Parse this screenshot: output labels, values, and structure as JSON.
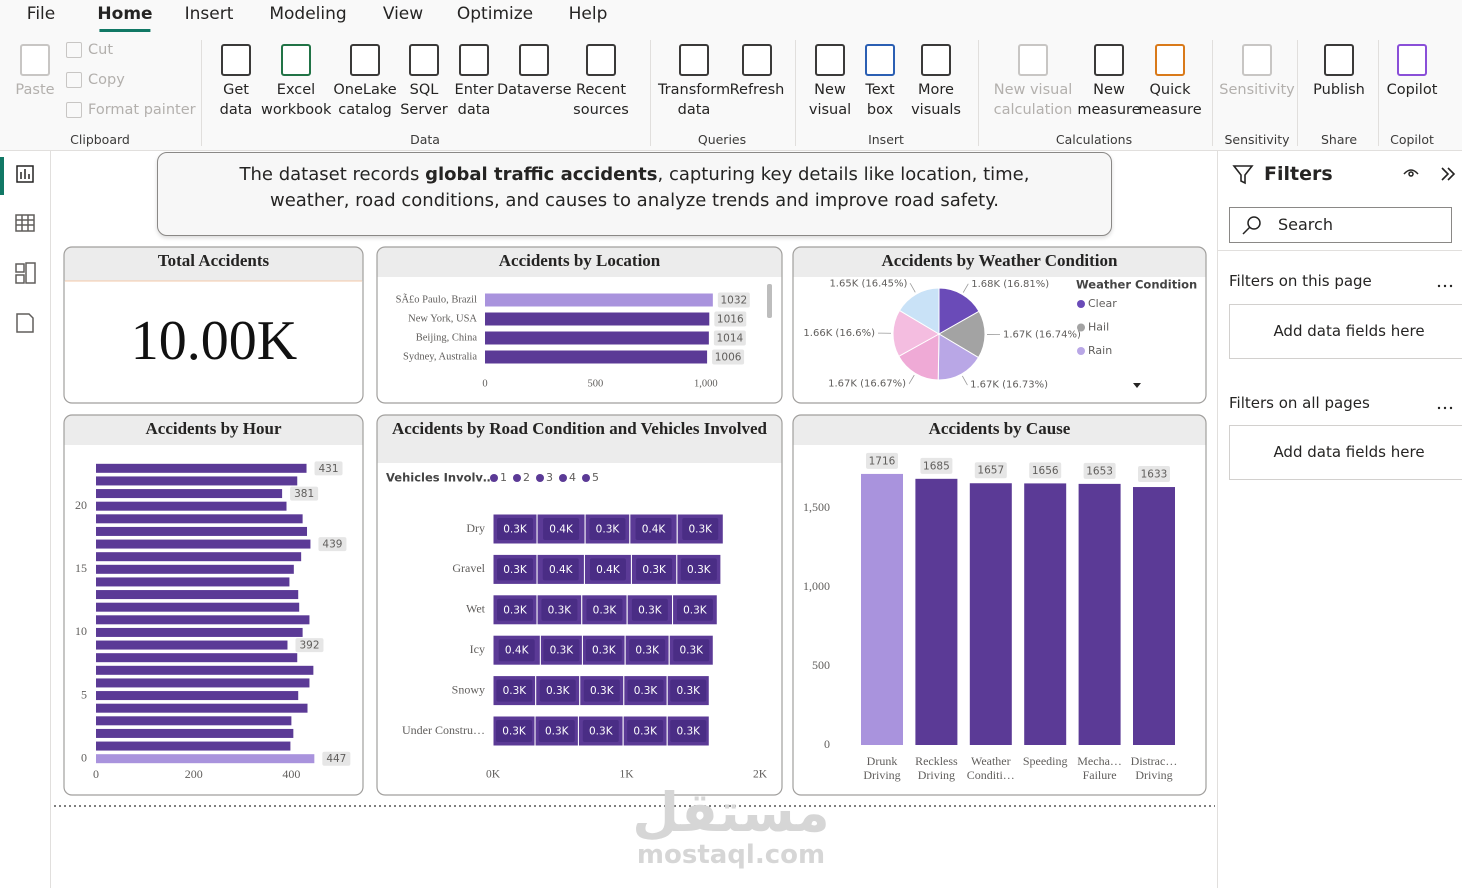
{
  "ribbon": {
    "tabs": [
      "File",
      "Home",
      "Insert",
      "Modeling",
      "View",
      "Optimize",
      "Help"
    ],
    "groups": [
      {
        "label": "Clipboard",
        "buttons": [
          "Paste",
          "Cut",
          "Copy",
          "Format painter"
        ]
      },
      {
        "label": "Data",
        "buttons": [
          "Get data",
          "Excel workbook",
          "OneLake catalog",
          "SQL Server",
          "Enter data",
          "Dataverse",
          "Recent sources"
        ]
      },
      {
        "label": "Queries",
        "buttons": [
          "Transform data",
          "Refresh"
        ]
      },
      {
        "label": "Insert",
        "buttons": [
          "New visual",
          "Text box",
          "More visuals"
        ]
      },
      {
        "label": "Calculations",
        "buttons": [
          "New visual calculation",
          "New measure",
          "Quick measure"
        ]
      },
      {
        "label": "Sensitivity",
        "buttons": [
          "Sensitivity"
        ]
      },
      {
        "label": "Share",
        "buttons": [
          "Publish"
        ]
      },
      {
        "label": "Copilot",
        "buttons": [
          "Copilot"
        ]
      }
    ]
  },
  "description": {
    "before": "The dataset records ",
    "bold": "global traffic accidents",
    "after": ", capturing key details like location, time, weather, road conditions, and causes to analyze trends and improve road safety."
  },
  "filters": {
    "title": "Filters",
    "search": "Search",
    "sections": [
      {
        "label": "Filters on this page",
        "placeholder": "Add data fields here"
      },
      {
        "label": "Filters on all pages",
        "placeholder": "Add data fields here"
      }
    ]
  },
  "visuals": {
    "total_accidents": {
      "type": "card",
      "title": "Total Accidents",
      "value": "10.00K"
    },
    "by_location": {
      "type": "bar",
      "title": "Accidents by Location",
      "categories": [
        "SÃ£o Paulo, Brazil",
        "New York, USA",
        "Beijing, China",
        "Sydney, Australia"
      ],
      "values": [
        1032,
        1016,
        1014,
        1006
      ],
      "colors": [
        "#a993dd",
        "#5b3a96",
        "#5b3a96",
        "#5b3a96"
      ],
      "xlim": [
        0,
        1300
      ],
      "xticks": [
        0,
        500,
        {
          "value": 1000,
          "label": "1,000"
        }
      ]
    },
    "by_weather": {
      "type": "pie",
      "title": "Accidents by Weather Condition",
      "legend_title": "Weather Condition",
      "categories": [
        "Clear",
        "Hail",
        "Rain",
        null,
        null,
        null
      ],
      "values": [
        1681,
        1674,
        1673,
        1667,
        1660,
        1645
      ],
      "value_labels": [
        "1.68K (16.81%)",
        "1.67K (16.74%)",
        "1.67K (16.73%)",
        "1.67K (16.67%)",
        "1.66K (16.6%)",
        "1.65K (16.45%)"
      ],
      "colors": [
        "#6a4bb8",
        "#a3a3a3",
        "#b9a7e6",
        "#efaad6",
        "#f4bde0",
        "#c9e2f7"
      ]
    },
    "by_hour": {
      "type": "bar",
      "title": "Accidents by Hour",
      "y": [
        0,
        1,
        2,
        3,
        4,
        5,
        6,
        7,
        8,
        9,
        10,
        11,
        12,
        13,
        14,
        15,
        16,
        17,
        18,
        19,
        20,
        21,
        22,
        23
      ],
      "values": [
        447,
        398,
        404,
        400,
        433,
        414,
        437,
        445,
        412,
        392,
        423,
        437,
        416,
        414,
        396,
        405,
        420,
        439,
        432,
        423,
        390,
        381,
        412,
        431
      ],
      "value_labels": [
        "447",
        null,
        null,
        null,
        null,
        null,
        null,
        null,
        null,
        "392",
        null,
        null,
        null,
        null,
        null,
        null,
        null,
        "439",
        null,
        null,
        null,
        "381",
        null,
        "431"
      ],
      "colors": [
        "#a993dd",
        "#5b3a96",
        "#5b3a96",
        "#5b3a96",
        "#5b3a96",
        "#5b3a96",
        "#5b3a96",
        "#5b3a96",
        "#5b3a96",
        "#5b3a96",
        "#5b3a96",
        "#5b3a96",
        "#5b3a96",
        "#5b3a96",
        "#5b3a96",
        "#5b3a96",
        "#5b3a96",
        "#5b3a96",
        "#5b3a96",
        "#5b3a96",
        "#5b3a96",
        "#5b3a96",
        "#5b3a96",
        "#5b3a96"
      ],
      "xlim": [
        0,
        520
      ],
      "xticks": [
        0,
        200,
        400
      ],
      "ylim": [
        -0.5,
        23.5
      ],
      "yticks": [
        0,
        5,
        10,
        15,
        20
      ]
    },
    "by_road": {
      "type": "stacked_bar",
      "title": "Accidents by Road Condition and Vehicles Involved",
      "legend_title": "Vehicles Involv…",
      "categories": [
        "Dry",
        "Gravel",
        "Wet",
        "Icy",
        "Snowy",
        "Under Constru…"
      ],
      "series": [
        {
          "name": "1",
          "color": "#5b3a96",
          "values": [
            330,
            330,
            330,
            355,
            320,
            315
          ],
          "value_labels": [
            "0.3K",
            "0.3K",
            "0.3K",
            "0.4K",
            "0.3K",
            "0.3K"
          ]
        },
        {
          "name": "2",
          "color": "#5b3a96",
          "values": [
            360,
            355,
            335,
            315,
            330,
            325
          ],
          "value_labels": [
            "0.4K",
            "0.4K",
            "0.3K",
            "0.3K",
            "0.3K",
            "0.3K"
          ]
        },
        {
          "name": "3",
          "color": "#5b3a96",
          "values": [
            335,
            352,
            340,
            320,
            330,
            335
          ],
          "value_labels": [
            "0.3K",
            "0.4K",
            "0.3K",
            "0.3K",
            "0.3K",
            "0.3K"
          ]
        },
        {
          "name": "4",
          "color": "#5b3a96",
          "values": [
            355,
            340,
            340,
            330,
            325,
            330
          ],
          "value_labels": [
            "0.4K",
            "0.3K",
            "0.3K",
            "0.3K",
            "0.3K",
            "0.3K"
          ]
        },
        {
          "name": "5",
          "color": "#5b3a96",
          "values": [
            345,
            330,
            335,
            330,
            315,
            315
          ],
          "value_labels": [
            "0.3K",
            "0.3K",
            "0.3K",
            "0.3K",
            "0.3K",
            "0.3K"
          ]
        }
      ],
      "xlim": [
        0,
        2000
      ],
      "xticks": [
        {
          "value": 0,
          "label": "0K"
        },
        {
          "value": 1000,
          "label": "1K"
        },
        {
          "value": 2000,
          "label": "2K"
        }
      ]
    },
    "by_cause": {
      "type": "column",
      "title": "Accidents by Cause",
      "categories": [
        "Drunk Driving",
        "Reckless Driving",
        "Weather Conditi…",
        "Speeding",
        "Mecha… Failure",
        "Distrac… Driving"
      ],
      "values": [
        1716,
        1685,
        1657,
        1656,
        1653,
        1633
      ],
      "colors": [
        "#a993dd",
        "#5b3a96",
        "#5b3a96",
        "#5b3a96",
        "#5b3a96",
        "#5b3a96"
      ],
      "ylim": [
        0,
        1870
      ],
      "yticks": [
        0,
        500,
        {
          "value": 1000,
          "label": "1,000"
        },
        {
          "value": 1500,
          "label": "1,500"
        }
      ]
    }
  },
  "watermark": {
    "arabic": "مستقل",
    "latin": "mostaql.com"
  }
}
